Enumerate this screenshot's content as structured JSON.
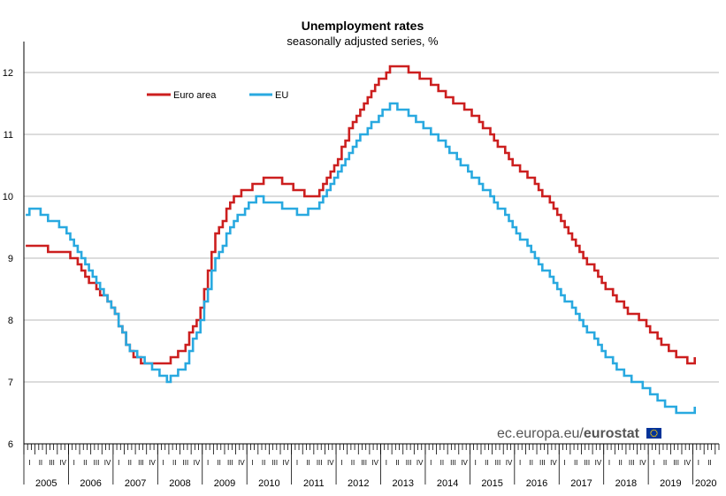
{
  "chart_data": {
    "type": "line",
    "title": "Unemployment rates",
    "subtitle": "seasonally adjusted series, %",
    "xlabel": "",
    "ylabel": "",
    "ylim": [
      6,
      12.5
    ],
    "yticks": [
      6,
      7,
      8,
      9,
      10,
      11,
      12
    ],
    "grid": "horizontal",
    "legend_placement": "top-left",
    "x_start": "2005-01",
    "x_end": "2020-01",
    "x_frequency": "monthly",
    "years": [
      "2005",
      "2006",
      "2007",
      "2008",
      "2009",
      "2010",
      "2011",
      "2012",
      "2013",
      "2014",
      "2015",
      "2016",
      "2017",
      "2018",
      "2019",
      "2020"
    ],
    "quarters": [
      "I",
      "II",
      "III",
      "IV"
    ],
    "series": [
      {
        "name": "Euro area",
        "color": "#cc1f1f",
        "anchors": [
          [
            "2005-01",
            9.2
          ],
          [
            "2005-12",
            9.1
          ],
          [
            "2006-12",
            8.2
          ],
          [
            "2007-05",
            7.5
          ],
          [
            "2007-08",
            7.3
          ],
          [
            "2008-03",
            7.3
          ],
          [
            "2008-08",
            7.6
          ],
          [
            "2008-12",
            8.2
          ],
          [
            "2009-04",
            9.4
          ],
          [
            "2009-09",
            10.0
          ],
          [
            "2010-03",
            10.2
          ],
          [
            "2010-06",
            10.3
          ],
          [
            "2010-12",
            10.2
          ],
          [
            "2011-04",
            10.0
          ],
          [
            "2011-07",
            10.0
          ],
          [
            "2011-12",
            10.5
          ],
          [
            "2012-05",
            11.2
          ],
          [
            "2012-09",
            11.6
          ],
          [
            "2013-03",
            12.1
          ],
          [
            "2013-06",
            12.1
          ],
          [
            "2013-12",
            11.9
          ],
          [
            "2014-06",
            11.6
          ],
          [
            "2014-12",
            11.4
          ],
          [
            "2015-06",
            11.0
          ],
          [
            "2015-12",
            10.5
          ],
          [
            "2016-06",
            10.2
          ],
          [
            "2016-12",
            9.7
          ],
          [
            "2017-06",
            9.1
          ],
          [
            "2017-12",
            8.6
          ],
          [
            "2018-06",
            8.2
          ],
          [
            "2018-12",
            7.9
          ],
          [
            "2019-06",
            7.5
          ],
          [
            "2019-09",
            7.4
          ],
          [
            "2019-12",
            7.3
          ],
          [
            "2020-01",
            7.4
          ]
        ]
      },
      {
        "name": "EU",
        "color": "#29a9e0",
        "anchors": [
          [
            "2005-01",
            9.7
          ],
          [
            "2005-03",
            9.8
          ],
          [
            "2005-06",
            9.7
          ],
          [
            "2005-12",
            9.4
          ],
          [
            "2006-12",
            8.2
          ],
          [
            "2007-05",
            7.5
          ],
          [
            "2007-12",
            7.2
          ],
          [
            "2008-03",
            7.0
          ],
          [
            "2008-08",
            7.3
          ],
          [
            "2008-12",
            8.0
          ],
          [
            "2009-04",
            9.0
          ],
          [
            "2009-09",
            9.6
          ],
          [
            "2010-03",
            10.0
          ],
          [
            "2010-06",
            9.9
          ],
          [
            "2010-12",
            9.8
          ],
          [
            "2011-03",
            9.7
          ],
          [
            "2011-07",
            9.8
          ],
          [
            "2011-12",
            10.3
          ],
          [
            "2012-05",
            10.8
          ],
          [
            "2012-09",
            11.1
          ],
          [
            "2013-03",
            11.5
          ],
          [
            "2013-06",
            11.4
          ],
          [
            "2013-12",
            11.1
          ],
          [
            "2014-06",
            10.8
          ],
          [
            "2014-12",
            10.4
          ],
          [
            "2015-06",
            10.0
          ],
          [
            "2015-12",
            9.5
          ],
          [
            "2016-06",
            9.0
          ],
          [
            "2016-12",
            8.5
          ],
          [
            "2017-06",
            8.0
          ],
          [
            "2017-12",
            7.5
          ],
          [
            "2018-06",
            7.1
          ],
          [
            "2018-12",
            6.9
          ],
          [
            "2019-03",
            6.7
          ],
          [
            "2019-06",
            6.6
          ],
          [
            "2019-09",
            6.5
          ],
          [
            "2019-12",
            6.5
          ],
          [
            "2020-01",
            6.6
          ]
        ]
      }
    ]
  },
  "credit": {
    "prefix": "ec.europa.eu/",
    "brand": "eurostat"
  },
  "colors": {
    "euro_area": "#cc1f1f",
    "eu": "#29a9e0",
    "grid": "#b8b8b8",
    "eu_flag": "#003399",
    "eu_flag_stars": "#ffcc00"
  }
}
